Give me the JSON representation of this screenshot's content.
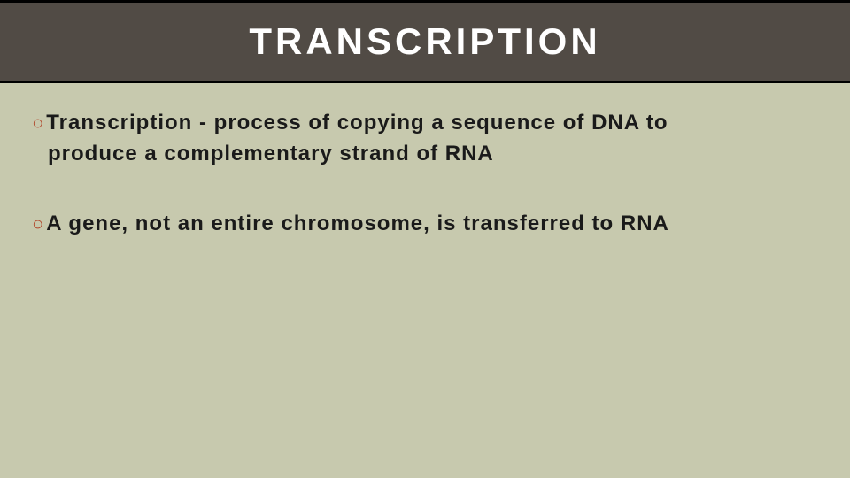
{
  "slide": {
    "title": "TRANSCRIPTION",
    "bullets": [
      {
        "line1": "Transcription - process of copying a sequence of DNA to",
        "line2": "produce a complementary strand of RNA"
      },
      {
        "line1": "A gene, not an entire chromosome, is transferred to RNA",
        "line2": ""
      }
    ],
    "colors": {
      "background": "#c7c9ae",
      "header_bg": "#514b45",
      "title_text": "#ffffff",
      "bullet_marker": "#b24a2e",
      "body_text": "#1a1a1a",
      "border": "#000000"
    },
    "typography": {
      "title_fontsize": 42,
      "title_letter_spacing": 4,
      "body_fontsize": 24,
      "body_weight": "700"
    }
  }
}
